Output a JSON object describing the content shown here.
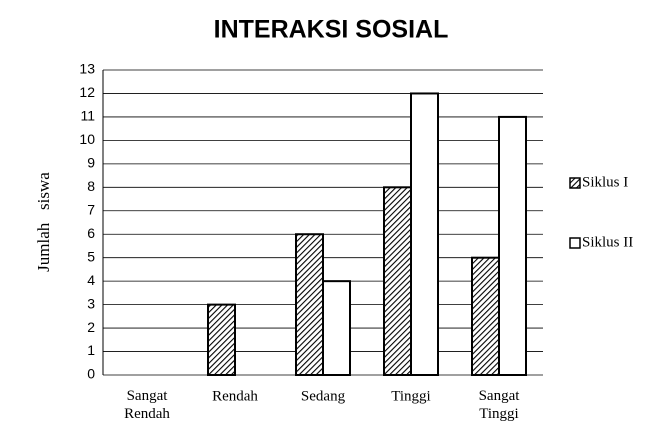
{
  "chart_data": {
    "type": "bar",
    "title": "INTERAKSI SOSIAL",
    "ylabel": "Jumlah   siswa",
    "categories": [
      "Sangat Rendah",
      "Rendah",
      "Sedang",
      "Tinggi",
      "Sangat Tinggi"
    ],
    "series": [
      {
        "name": "Siklus I",
        "pattern": "hatch",
        "values": [
          0,
          3,
          6,
          8,
          5
        ]
      },
      {
        "name": "Siklus II",
        "color": "#ffffff",
        "values": [
          0,
          0,
          4,
          12,
          11
        ]
      }
    ],
    "ylim": [
      0,
      13
    ],
    "yticks": [
      0,
      1,
      2,
      3,
      4,
      5,
      6,
      7,
      8,
      9,
      10,
      11,
      12,
      13
    ],
    "grid": true,
    "legend": "right"
  }
}
